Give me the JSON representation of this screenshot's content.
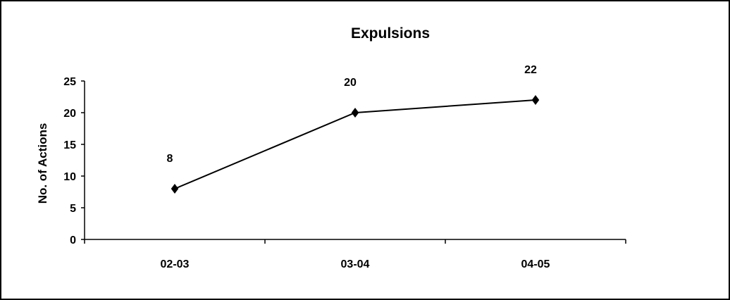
{
  "chart_data": {
    "type": "line",
    "title": "Expulsions",
    "xlabel": "",
    "ylabel": "No. of Actions",
    "categories": [
      "02-03",
      "03-04",
      "04-05"
    ],
    "series": [
      {
        "values": [
          8,
          20,
          22
        ]
      }
    ],
    "data_labels": [
      "8",
      "20",
      "22"
    ],
    "ylim": [
      0,
      25
    ],
    "yticks": [
      "0",
      "5",
      "10",
      "15",
      "20",
      "25"
    ],
    "grid": false,
    "legend": "none",
    "marker": "diamond",
    "colors": {
      "line": "#000000",
      "marker": "#000000",
      "frame": "#000000"
    }
  }
}
